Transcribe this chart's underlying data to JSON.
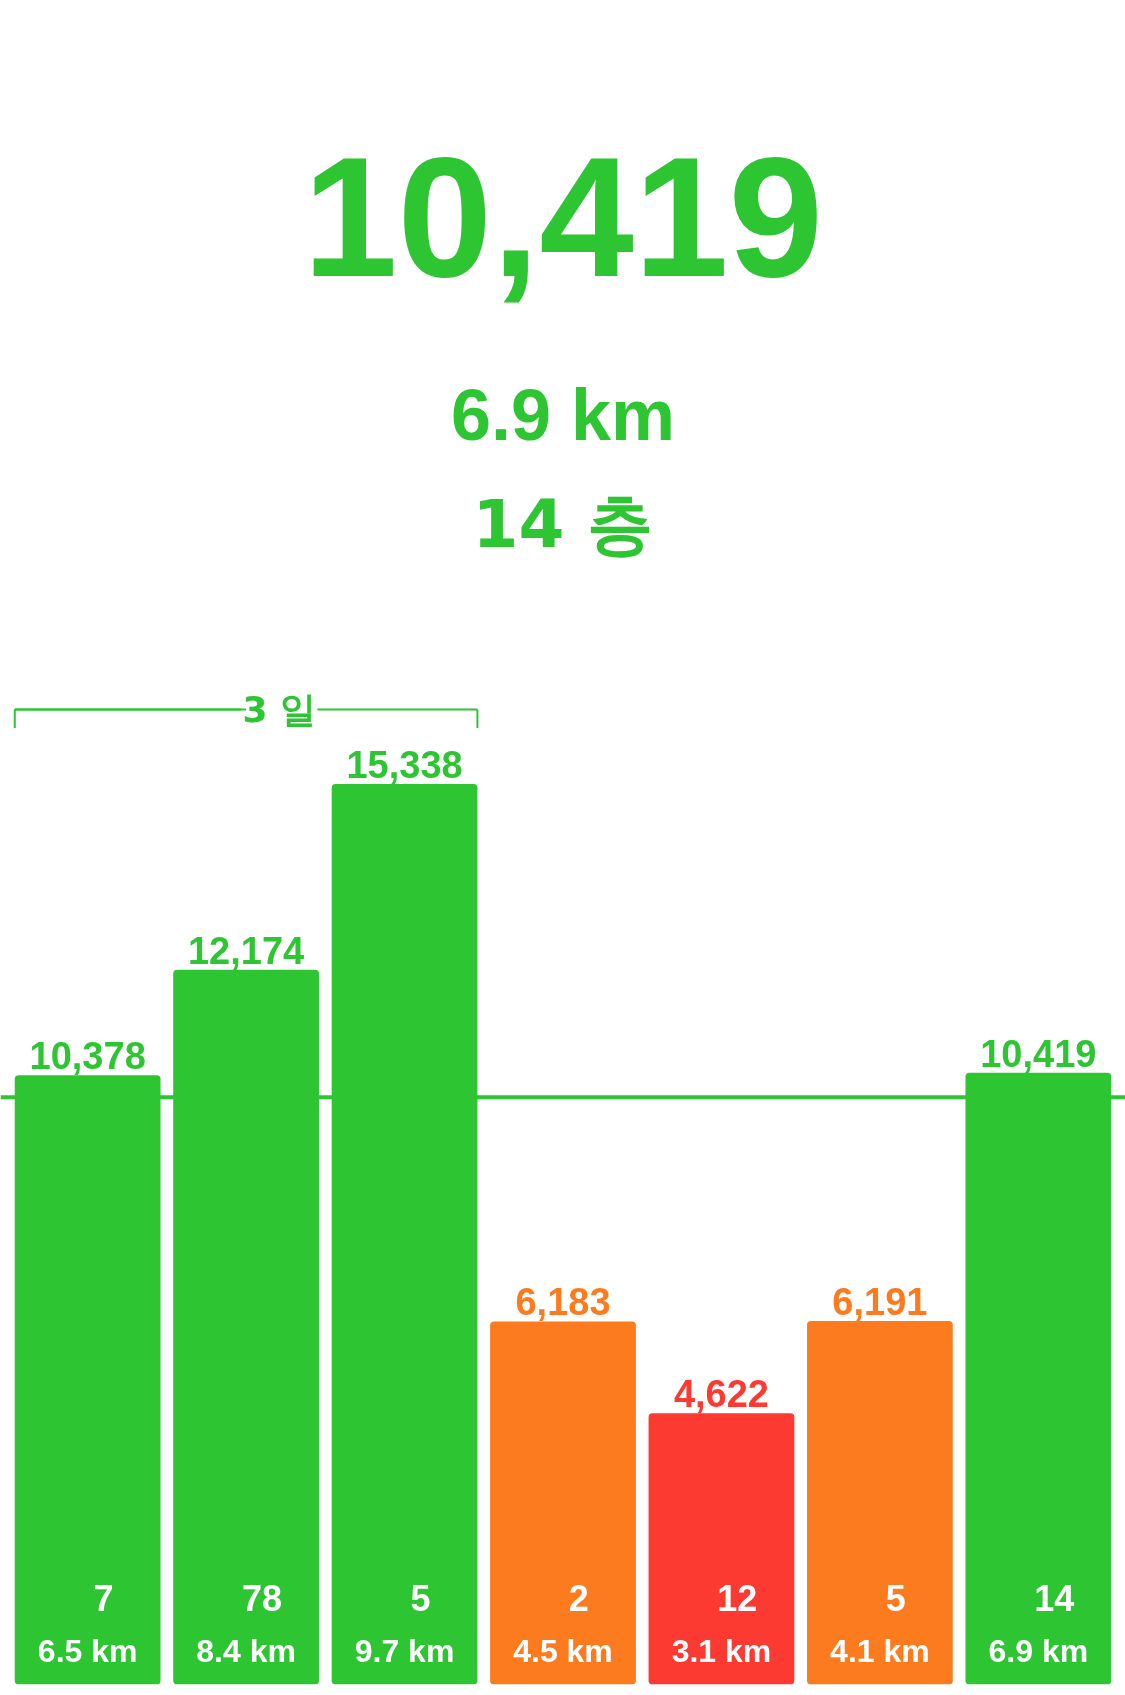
{
  "chart_data": {
    "type": "bar",
    "title": "10,419",
    "subtitle": "6.9 km",
    "categories": [
      null,
      null,
      null,
      null,
      null,
      null,
      null
    ],
    "values": [
      10378,
      12174,
      15338,
      6183,
      4622,
      6191,
      10419
    ],
    "colors": [
      "#2dc532",
      "#2dc532",
      "#2dc532",
      "#fc7b1e",
      "#fc3a32",
      "#fc7b1e",
      "#2dc532"
    ],
    "value_labels": [
      "10,378",
      "12,174",
      "15,338",
      "6,183",
      "4,622",
      "6,191",
      "10,419"
    ],
    "grid": false,
    "ref_lines": [
      {
        "axis": "y",
        "value": 10000,
        "color": "#2dc532"
      }
    ],
    "annotations": [
      "14 층",
      "3 일",
      "7",
      "6.5 km",
      "78",
      "8.4 km",
      "5",
      "9.7 km",
      "2",
      "4.5 km",
      "12",
      "3.1 km",
      "5",
      "4.1 km",
      "14",
      "6.9 km"
    ]
  }
}
